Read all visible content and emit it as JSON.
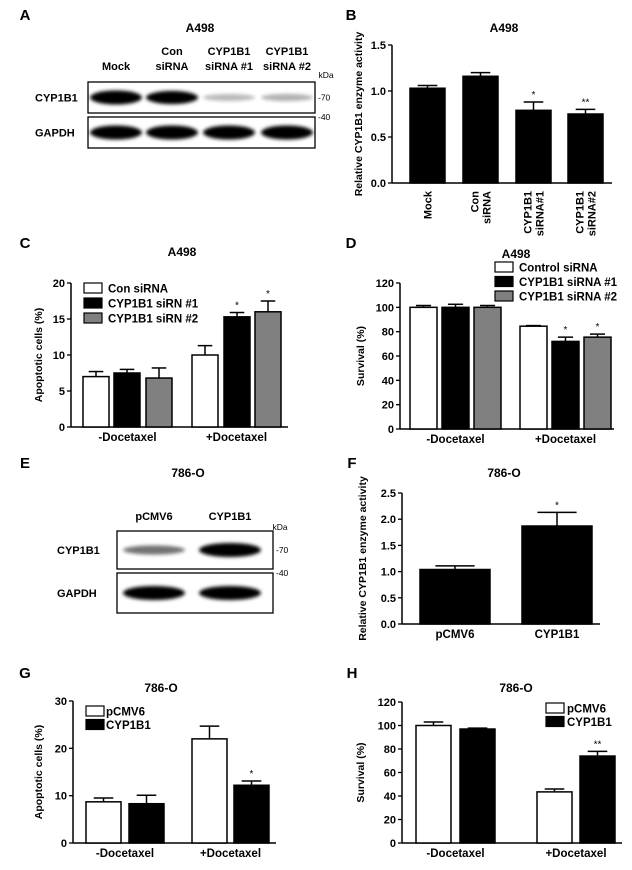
{
  "blots": [
    {
      "panel": "A",
      "title": "A498",
      "lanes": [
        "Mock",
        "Con siRNA",
        "CYP1B1 siRNA #1",
        "CYP1B1 siRNA #2"
      ],
      "rows": [
        {
          "label": "CYP1B1",
          "marker": "-70",
          "band_intensity": [
            1.0,
            0.9,
            0.12,
            0.15
          ]
        },
        {
          "label": "GAPDH",
          "marker": "-40",
          "band_intensity": [
            1.0,
            1.0,
            1.0,
            1.0
          ]
        }
      ],
      "unit": "kDa"
    },
    {
      "panel": "E",
      "title": "786-O",
      "lanes": [
        "pCMV6",
        "CYP1B1"
      ],
      "rows": [
        {
          "label": "CYP1B1",
          "marker": "-70",
          "band_intensity": [
            0.4,
            1.0
          ]
        },
        {
          "label": "GAPDH",
          "marker": "-40",
          "band_intensity": [
            1.0,
            1.0
          ]
        }
      ],
      "unit": "kDa"
    }
  ],
  "chart_data": [
    {
      "panel": "B",
      "type": "bar",
      "title": "A498",
      "ylabel": "Relative CYP1B1 enzyme activity",
      "xlabel": "",
      "ylim": [
        0,
        1.5
      ],
      "yticks": [
        "0.0",
        "0.5",
        "1.0",
        "1.5"
      ],
      "categories": [
        "Mock",
        "Con siRNA",
        "CYP1B1 siRNA#1",
        "CYP1B1 siRNA#2"
      ],
      "rotated_categories": true,
      "series": [
        {
          "values": [
            1.03,
            1.16,
            0.79,
            0.75
          ],
          "errors": [
            0.03,
            0.04,
            0.09,
            0.05
          ],
          "color": "#000000",
          "significance": [
            "",
            "",
            "*",
            "**"
          ]
        }
      ]
    },
    {
      "panel": "C",
      "type": "bar",
      "title": "A498",
      "ylabel": "Apoptotic cells (%)",
      "xlabel": "",
      "ylim": [
        0,
        20
      ],
      "yticks": [
        "0",
        "5",
        "10",
        "15",
        "20"
      ],
      "categories": [
        "-Docetaxel",
        "+Docetaxel"
      ],
      "legend": "top-left",
      "series": [
        {
          "name": "Con siRNA",
          "values": [
            7.0,
            10.0
          ],
          "errors": [
            0.7,
            1.3
          ],
          "color": "#ffffff",
          "significance": [
            "",
            ""
          ]
        },
        {
          "name": "CYP1B1 siRN #1",
          "values": [
            7.5,
            15.3
          ],
          "errors": [
            0.5,
            0.6
          ],
          "color": "#000000",
          "significance": [
            "",
            "*"
          ]
        },
        {
          "name": "CYP1B1 siRN #2",
          "values": [
            6.8,
            16.0
          ],
          "errors": [
            1.4,
            1.5
          ],
          "color": "#808080",
          "significance": [
            "",
            "*"
          ]
        }
      ]
    },
    {
      "panel": "D",
      "type": "bar",
      "title": "A498",
      "ylabel": "Survival (%)",
      "xlabel": "",
      "ylim": [
        0,
        120
      ],
      "yticks": [
        "0",
        "20",
        "40",
        "60",
        "80",
        "100",
        "120"
      ],
      "categories": [
        "-Docetaxel",
        "+Docetaxel"
      ],
      "legend": "top-right",
      "series": [
        {
          "name": "Control siRNA",
          "values": [
            100,
            84.5
          ],
          "errors": [
            1.5,
            0.5
          ],
          "color": "#ffffff",
          "significance": [
            "",
            ""
          ]
        },
        {
          "name": "CYP1B1 siRNA #1",
          "values": [
            100,
            72
          ],
          "errors": [
            2.5,
            3.5
          ],
          "color": "#000000",
          "significance": [
            "",
            "*"
          ]
        },
        {
          "name": "CYP1B1 siRNA #2",
          "values": [
            100,
            75.5
          ],
          "errors": [
            1.5,
            2.5
          ],
          "color": "#808080",
          "significance": [
            "",
            "*"
          ]
        }
      ]
    },
    {
      "panel": "F",
      "type": "bar",
      "title": "786-O",
      "ylabel": "Relative CYP1B1 enzyme activity",
      "xlabel": "",
      "ylim": [
        0,
        2.5
      ],
      "yticks": [
        "0.0",
        "0.5",
        "1.0",
        "1.5",
        "2.0",
        "2.5"
      ],
      "categories": [
        "pCMV6",
        "CYP1B1"
      ],
      "series": [
        {
          "values": [
            1.04,
            1.87
          ],
          "errors": [
            0.07,
            0.26
          ],
          "color": "#000000",
          "significance": [
            "",
            "*"
          ]
        }
      ]
    },
    {
      "panel": "G",
      "type": "bar",
      "title": "786-O",
      "ylabel": "Apoptotic cells (%)",
      "xlabel": "",
      "ylim": [
        0,
        30
      ],
      "yticks": [
        "0",
        "10",
        "20",
        "30"
      ],
      "categories": [
        "-Docetaxel",
        "+Docetaxel"
      ],
      "legend": "top-left",
      "series": [
        {
          "name": "pCMV6",
          "values": [
            8.7,
            22.0
          ],
          "errors": [
            0.8,
            2.7
          ],
          "color": "#ffffff",
          "significance": [
            "",
            ""
          ]
        },
        {
          "name": "CYP1B1",
          "values": [
            8.3,
            12.2
          ],
          "errors": [
            1.8,
            0.9
          ],
          "color": "#000000",
          "significance": [
            "",
            "*"
          ]
        }
      ]
    },
    {
      "panel": "H",
      "type": "bar",
      "title": "786-O",
      "ylabel": "Survival (%)",
      "xlabel": "",
      "ylim": [
        0,
        120
      ],
      "yticks": [
        "0",
        "20",
        "40",
        "60",
        "80",
        "100",
        "120"
      ],
      "categories": [
        "-Docetaxel",
        "+Docetaxel"
      ],
      "legend": "top-right",
      "series": [
        {
          "name": "pCMV6",
          "values": [
            100,
            43.5
          ],
          "errors": [
            3,
            2.5
          ],
          "color": "#ffffff",
          "significance": [
            "",
            ""
          ]
        },
        {
          "name": "CYP1B1",
          "values": [
            97,
            74
          ],
          "errors": [
            0.8,
            4
          ],
          "color": "#000000",
          "significance": [
            "",
            "**"
          ]
        }
      ]
    }
  ]
}
